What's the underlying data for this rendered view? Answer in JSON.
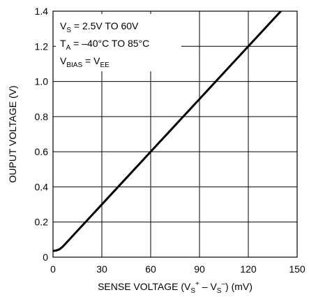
{
  "chart_data": {
    "type": "line",
    "title": "",
    "xlabel": {
      "main": "SENSE VOLTAGE (V",
      "sub1": "S",
      "sup1": "+",
      "mid": " – V",
      "sub2": "S",
      "sup2": "–",
      "unit": ") (mV)"
    },
    "ylabel": "OUPUT VOLTAGE (V)",
    "xlim": [
      0,
      150
    ],
    "ylim": [
      0,
      1.4
    ],
    "xticks": [
      "0",
      "30",
      "60",
      "90",
      "120",
      "150"
    ],
    "yticks": [
      "0",
      "0.2",
      "0.4",
      "0.6",
      "0.8",
      "1.0",
      "1.2",
      "1.4"
    ],
    "grid": true,
    "legend": "none",
    "conditions": [
      {
        "main": "V",
        "sub": "S",
        "rest": " = 2.5V TO 60V"
      },
      {
        "main": "T",
        "sub": "A",
        "rest": " = –40°C TO 85°C"
      },
      {
        "main": "V",
        "sub": "BIAS",
        "rest": " = V",
        "sub2": "EE"
      }
    ],
    "series": [
      {
        "x": [
          0,
          2,
          4,
          6,
          8,
          10,
          15,
          20,
          30,
          60,
          90,
          120,
          150
        ],
        "y": [
          0.035,
          0.038,
          0.045,
          0.06,
          0.08,
          0.1,
          0.15,
          0.2,
          0.3,
          0.6,
          0.9,
          1.2,
          1.5
        ]
      }
    ],
    "line_color": "#000000",
    "grid_color": "#000000"
  }
}
